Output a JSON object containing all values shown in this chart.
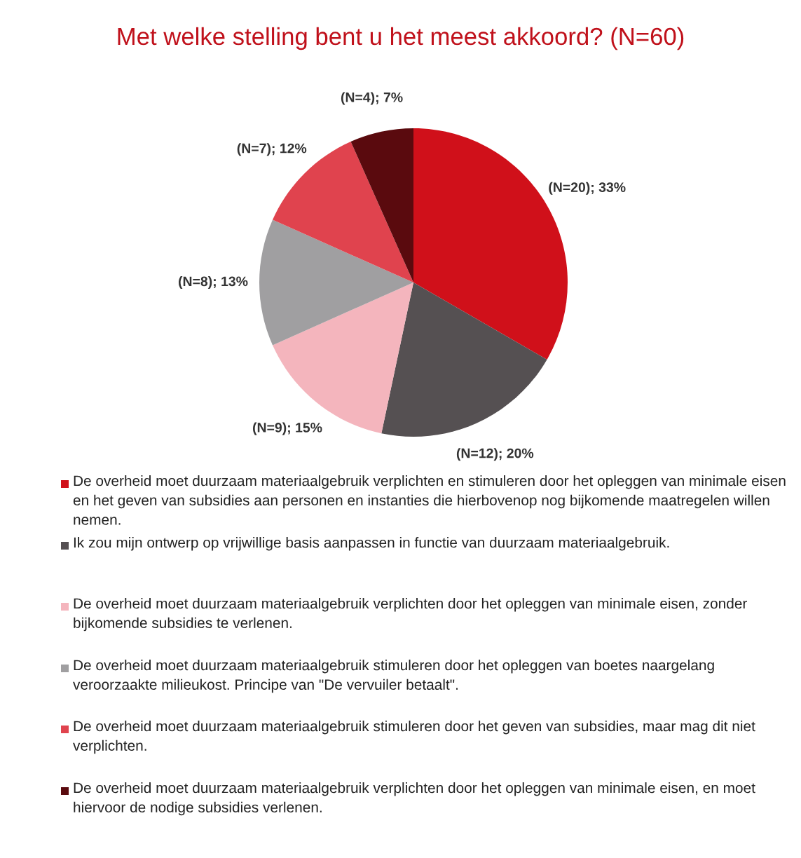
{
  "chart_data": {
    "type": "pie",
    "title": "Met welke stelling bent u het meest akkoord? (N=60)",
    "categories": [
      "De overheid moet duurzaam materiaalgebruik verplichten en stimuleren door het opleggen van minimale eisen en het geven van subsidies aan personen en instanties die hierbovenop nog bijkomende maatregelen willen nemen.",
      "Ik zou mijn ontwerp op vrijwillige basis aanpassen in functie van duurzaam materiaalgebruik.",
      "De overheid moet duurzaam materiaalgebruik verplichten door het opleggen van minimale eisen, zonder bijkomende subsidies te verlenen.",
      "De overheid moet duurzaam materiaalgebruik stimuleren door het opleggen van boetes naargelang veroorzaakte milieukost. Principe van \"De vervuiler betaalt\".",
      "De overheid moet duurzaam materiaalgebruik stimuleren door het geven van subsidies, maar mag dit niet verplichten.",
      "De overheid moet duurzaam materiaalgebruik verplichten door het opleggen van minimale eisen, en moet hiervoor de nodige subsidies verlenen."
    ],
    "values": [
      20,
      12,
      9,
      8,
      7,
      4
    ],
    "value_labels": [
      "(N=20); 33%",
      "(N=12); 20%",
      "(N=9); 15%",
      "(N=8); 13%",
      "(N=7); 12%",
      "(N=4); 7%"
    ],
    "colors": [
      "#d0101a",
      "#555052",
      "#f4b5bd",
      "#a09fa1",
      "#e0434e",
      "#5a0a0e"
    ],
    "legend": "bottom"
  }
}
